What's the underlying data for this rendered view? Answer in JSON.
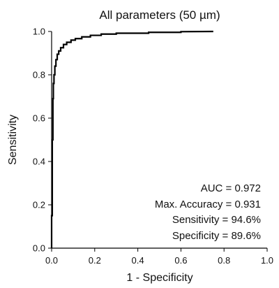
{
  "chart_data": {
    "type": "line",
    "title": "All parameters (50 µm)",
    "xlabel": "1 - Specificity",
    "ylabel": "Sensitivity",
    "xlim": [
      0.0,
      1.0
    ],
    "ylim": [
      0.0,
      1.0
    ],
    "x_ticks": [
      "0.0",
      "0.2",
      "0.4",
      "0.6",
      "0.8",
      "1.0"
    ],
    "y_ticks": [
      "0.0",
      "0.2",
      "0.4",
      "0.6",
      "0.8",
      "1.0"
    ],
    "grid": false,
    "series": [
      {
        "name": "",
        "color": "#000000",
        "x": [
          0.0,
          0.0,
          0.003,
          0.003,
          0.006,
          0.006,
          0.008,
          0.008,
          0.011,
          0.011,
          0.015,
          0.015,
          0.02,
          0.02,
          0.026,
          0.026,
          0.033,
          0.033,
          0.042,
          0.042,
          0.055,
          0.055,
          0.07,
          0.07,
          0.09,
          0.09,
          0.11,
          0.11,
          0.14,
          0.14,
          0.18,
          0.18,
          0.23,
          0.23,
          0.3,
          0.3,
          0.45,
          0.45,
          0.6,
          0.6,
          0.75
        ],
        "y": [
          0.0,
          0.15,
          0.15,
          0.5,
          0.5,
          0.69,
          0.69,
          0.76,
          0.76,
          0.8,
          0.8,
          0.84,
          0.84,
          0.87,
          0.87,
          0.895,
          0.895,
          0.91,
          0.91,
          0.925,
          0.925,
          0.94,
          0.94,
          0.95,
          0.95,
          0.96,
          0.96,
          0.967,
          0.967,
          0.975,
          0.975,
          0.982,
          0.982,
          0.988,
          0.988,
          0.992,
          0.992,
          0.996,
          0.996,
          0.999,
          1.0
        ]
      }
    ],
    "annotations": [
      "AUC = 0.972",
      "Max. Accuracy = 0.931",
      "Sensitivity = 94.6%",
      "Specificity = 89.6%"
    ]
  }
}
